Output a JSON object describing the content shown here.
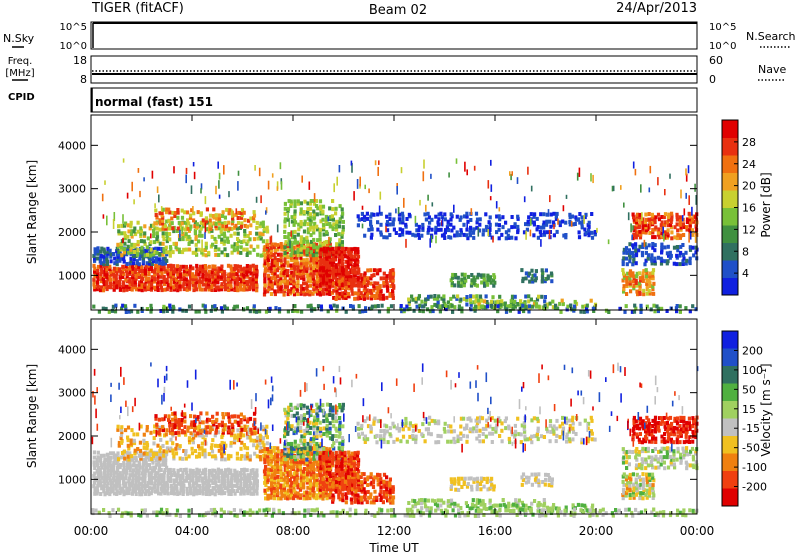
{
  "header": {
    "station": "TIGER (fitACF)",
    "beam": "Beam 02",
    "date": "24/Apr/2013"
  },
  "strips": {
    "nsky_label": "N.Sky",
    "nsky_ticks": [
      "10^5",
      "10^0"
    ],
    "nsearch_label": "N.Search",
    "nsearch_ticks": [
      "10^5",
      "10^0"
    ],
    "freq_label": "Freq.",
    "freq_unit": "[MHz]",
    "freq_ticks": [
      "18",
      "8"
    ],
    "nave_label": "Nave",
    "nave_ticks": [
      "60",
      "0"
    ],
    "cpid_label": "CPID",
    "cpid_text": "normal (fast) 151"
  },
  "colors": {
    "power_scale": [
      "#1020e0",
      "#2050c8",
      "#307060",
      "#409040",
      "#78c038",
      "#c8d030",
      "#f0a020",
      "#f07010",
      "#e83010",
      "#e00000"
    ],
    "velocity_scale": [
      "#1020e0",
      "#2050c8",
      "#307060",
      "#50b040",
      "#a0d060",
      "#c0c0c0",
      "#f0c020",
      "#f08010",
      "#f04010",
      "#e00000"
    ]
  },
  "chart_data": [
    {
      "type": "heatmap",
      "panel": "power",
      "ylabel": "Slant Range [km]",
      "yticks": [
        "1000",
        "2000",
        "3000",
        "4000"
      ],
      "ylim": [
        200,
        4700
      ],
      "xlim": [
        0,
        24
      ],
      "colorbar_label": "Power [dB]",
      "colorbar_ticks": [
        "4",
        "8",
        "12",
        "16",
        "20",
        "24",
        "28"
      ],
      "colorbar_range": [
        0,
        32
      ]
    },
    {
      "type": "heatmap",
      "panel": "velocity",
      "ylabel": "Slant Range [km]",
      "yticks": [
        "1000",
        "2000",
        "3000",
        "4000"
      ],
      "ylim": [
        200,
        4700
      ],
      "xlim": [
        0,
        24
      ],
      "colorbar_label": "Velocity [m s⁻¹]",
      "colorbar_ticks": [
        "200",
        "100",
        "50",
        "15",
        "-15",
        "-50",
        "-100",
        "-200"
      ]
    }
  ],
  "xaxis": {
    "label": "Time UT",
    "ticks": [
      "00:00",
      "04:00",
      "08:00",
      "12:00",
      "16:00",
      "20:00",
      "00:00"
    ]
  }
}
